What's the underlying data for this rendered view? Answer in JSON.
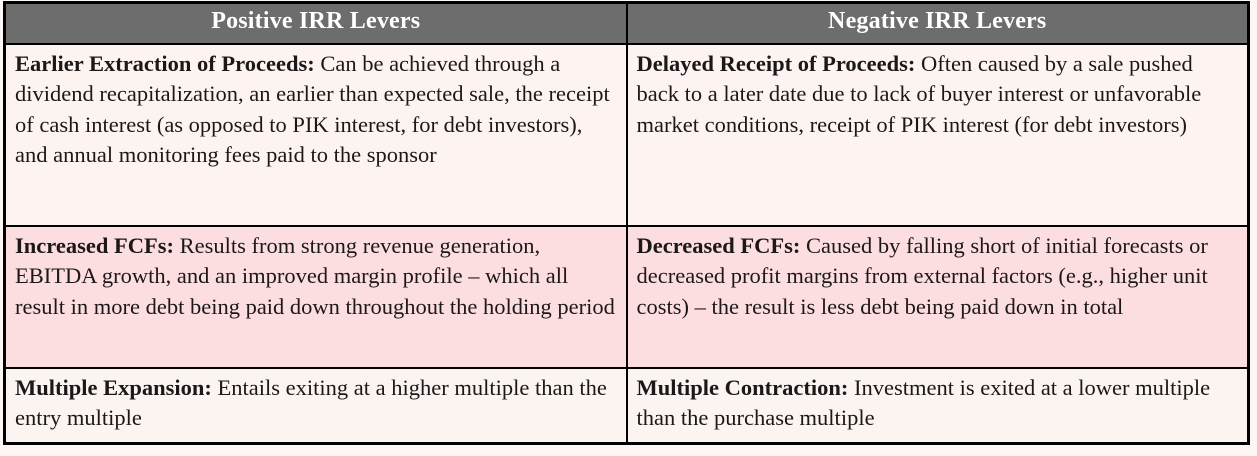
{
  "colors": {
    "page_background": "#fdf6f4",
    "header_background": "#6d6d6d",
    "header_text": "#ffffff",
    "row_pale_background": "#fdf4f2",
    "row_pink_background": "#fcdee1",
    "body_text": "#1c1819",
    "border": "#000000"
  },
  "table": {
    "headers": [
      "Positive IRR Levers",
      "Negative IRR Levers"
    ],
    "rows": [
      {
        "background": "#fdf4f2",
        "cells": [
          {
            "term": "Earlier Extraction of Proceeds:",
            "description": " Can be achieved through a dividend recapitalization, an earlier than expected sale, the receipt of cash interest (as opposed to PIK interest, for debt investors), and annual monitoring fees paid to the sponsor"
          },
          {
            "term": "Delayed Receipt of Proceeds:",
            "description": " Often caused by a sale pushed back to a later date due to lack of buyer interest or unfavorable market conditions, receipt of PIK interest (for debt investors)"
          }
        ]
      },
      {
        "background": "#fcdee1",
        "cells": [
          {
            "term": "Increased FCFs:",
            "description": " Results from strong revenue generation, EBITDA growth, and an improved margin profile – which all result in more debt being paid down throughout the holding period"
          },
          {
            "term": "Decreased FCFs:",
            "description": " Caused by falling short of initial forecasts or decreased profit margins from external factors (e.g., higher unit costs) – the result is less debt being paid down in total"
          }
        ]
      },
      {
        "background": "#fbf4f1",
        "cells": [
          {
            "term": "Multiple Expansion:",
            "description": " Entails exiting at a higher multiple than the entry multiple"
          },
          {
            "term": "Multiple Contraction:",
            "description": " Investment is exited at a lower multiple than the purchase multiple"
          }
        ]
      }
    ]
  }
}
